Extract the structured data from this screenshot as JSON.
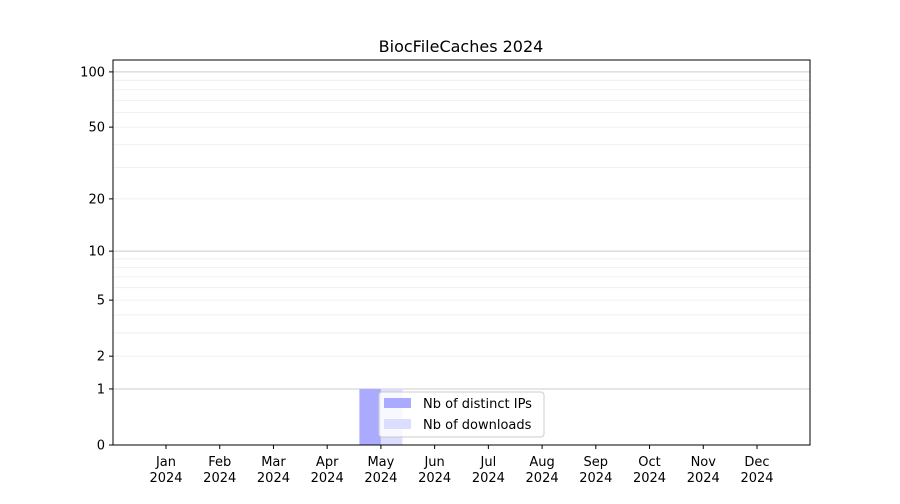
{
  "chart_data": {
    "type": "bar",
    "title": "BiocFileCaches 2024",
    "xlabel": "",
    "ylabel": "",
    "yscale": "log(1+y)",
    "ylim": [
      0,
      116
    ],
    "yticks": [
      0,
      1,
      2,
      5,
      10,
      20,
      50,
      100
    ],
    "grid": true,
    "legend_position": "lower-center",
    "categories": [
      "Jan\n2024",
      "Feb\n2024",
      "Mar\n2024",
      "Apr\n2024",
      "May\n2024",
      "Jun\n2024",
      "Jul\n2024",
      "Aug\n2024",
      "Sep\n2024",
      "Oct\n2024",
      "Nov\n2024",
      "Dec\n2024"
    ],
    "series": [
      {
        "name": "Nb of distinct IPs",
        "color": "#aaaaff",
        "values": [
          0,
          0,
          0,
          0,
          1,
          0,
          0,
          0,
          0,
          0,
          0,
          0
        ]
      },
      {
        "name": "Nb of downloads",
        "color": "#ddddff",
        "values": [
          0,
          0,
          0,
          0,
          1,
          0,
          0,
          0,
          0,
          0,
          0,
          0
        ]
      }
    ]
  }
}
